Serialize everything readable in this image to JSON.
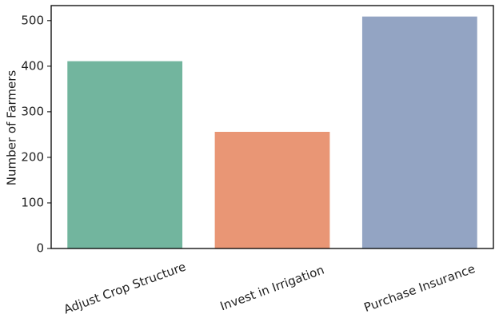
{
  "chart_data": {
    "type": "bar",
    "y_label": "Number of Farmers",
    "categories": [
      "Adjust Crop Structure",
      "Invest in Irrigation",
      "Purchase Insurance"
    ],
    "values": [
      411,
      256,
      509
    ],
    "colors": [
      "#72b59e",
      "#e99675",
      "#93a4c3"
    ],
    "ylim": [
      0,
      533
    ],
    "yticks": [
      0,
      100,
      200,
      300,
      400,
      500
    ],
    "grid": false
  }
}
